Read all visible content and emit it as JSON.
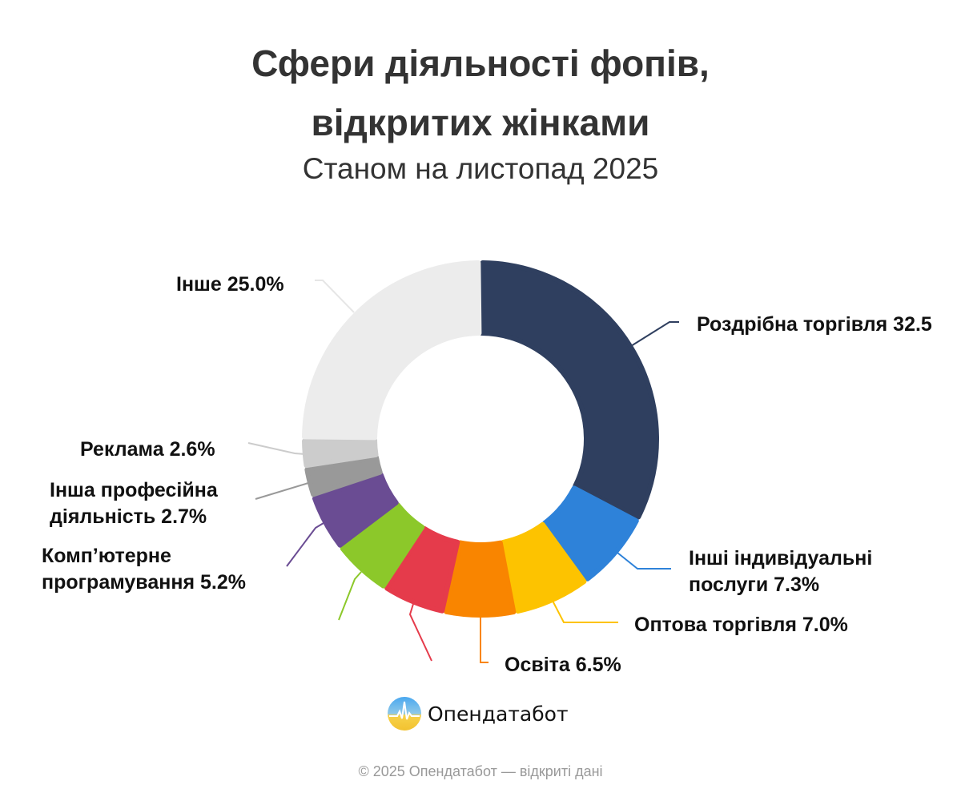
{
  "header": {
    "title_line1": "Сфери діяльності фопів,",
    "title_line2": "відкритих жінками",
    "subtitle": "Станом на листопад 2025"
  },
  "labels": {
    "retail": "Роздрібна торгівля 32.5",
    "other_services_1": "Інші індивідуальні",
    "other_services_2": "послуги 7.3%",
    "wholesale": "Оптова торгівля 7.0%",
    "education": "Освіта 6.5%",
    "programming_1": "Комп’ютерне",
    "programming_2": "програмування 5.2%",
    "prof_1": "Інша професійна",
    "prof_2": "діяльність 2.7%",
    "ads": "Реклама 2.6%",
    "other": "Інше 25.0%"
  },
  "logo": {
    "name": "Опендатабот",
    "icon": "opendatabot-logo-icon"
  },
  "footer": {
    "text": "© 2025 Опендатабот — відкриті дані"
  },
  "chart_data": {
    "type": "pie",
    "subtype": "donut",
    "title": "Сфери діяльності фопів, відкритих жінками",
    "subtitle": "Станом на листопад 2025",
    "start_angle": "12 o'clock, clockwise",
    "categories": [
      "Роздрібна торгівля",
      "Інші індивідуальні послуги",
      "Оптова торгівля",
      "Освіта",
      "(unlabeled red)",
      "(unlabeled green)",
      "Комп’ютерне програмування",
      "Інша професійна діяльність",
      "Реклама",
      "Інше"
    ],
    "values": [
      32.5,
      7.3,
      7.0,
      6.5,
      5.8,
      5.4,
      5.2,
      2.7,
      2.6,
      25.0
    ],
    "value_note": "red and green slice values are not labeled; estimated from arc size (sum 11.2)",
    "colors": [
      "#2f3f5f",
      "#2e82d9",
      "#fdc300",
      "#f98500",
      "#e53b4b",
      "#8cc82a",
      "#6a4c93",
      "#999999",
      "#cccccc",
      "#ececec"
    ],
    "unit": "%",
    "legend": "none (direct leader-line labels)"
  }
}
